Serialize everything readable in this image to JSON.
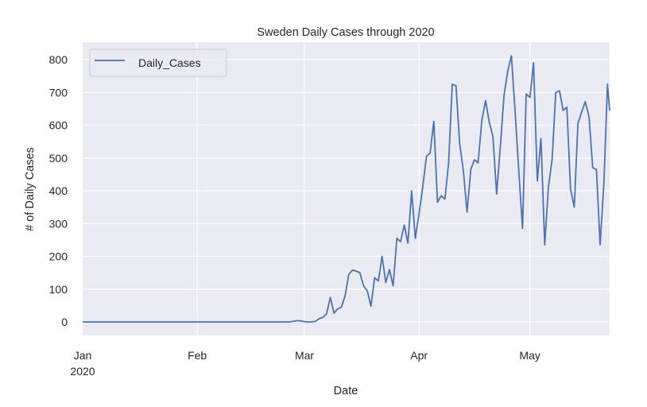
{
  "chart_data": {
    "type": "line",
    "title": "Sweden Daily Cases through 2020",
    "xlabel": "Date",
    "ylabel": "# of Daily Cases",
    "x_start": "2020-01-01",
    "x_range_days": [
      0,
      142.6
    ],
    "ylim": [
      -40,
      843
    ],
    "yticks": [
      0,
      100,
      200,
      300,
      400,
      500,
      600,
      700,
      800
    ],
    "ytick_labels": [
      "0",
      "100",
      "200",
      "300",
      "400",
      "500",
      "600",
      "700",
      "800"
    ],
    "xticks": [
      {
        "day": 0,
        "label": "Jan",
        "sublabel": "2020"
      },
      {
        "day": 31,
        "label": "Feb",
        "sublabel": ""
      },
      {
        "day": 60,
        "label": "Mar",
        "sublabel": ""
      },
      {
        "day": 91,
        "label": "Apr",
        "sublabel": ""
      },
      {
        "day": 121,
        "label": "May",
        "sublabel": ""
      }
    ],
    "grid": true,
    "legend": {
      "position": "upper-left",
      "entries": [
        "Daily_Cases"
      ]
    },
    "series": [
      {
        "name": "Daily_Cases",
        "color": "#4c72b0",
        "day_values": [
          [
            0,
            0
          ],
          [
            56,
            0
          ],
          [
            58,
            4
          ],
          [
            59,
            3
          ],
          [
            60,
            1
          ],
          [
            61,
            0
          ],
          [
            62,
            0
          ],
          [
            63,
            2
          ],
          [
            64,
            10
          ],
          [
            65,
            14
          ],
          [
            66,
            25
          ],
          [
            67,
            75
          ],
          [
            68,
            27
          ],
          [
            69,
            40
          ],
          [
            70,
            45
          ],
          [
            71,
            80
          ],
          [
            72,
            145
          ],
          [
            73,
            158
          ],
          [
            74,
            155
          ],
          [
            75,
            150
          ],
          [
            76,
            110
          ],
          [
            77,
            95
          ],
          [
            78,
            48
          ],
          [
            79,
            135
          ],
          [
            80,
            125
          ],
          [
            81,
            200
          ],
          [
            82,
            120
          ],
          [
            83,
            160
          ],
          [
            84,
            110
          ],
          [
            85,
            255
          ],
          [
            86,
            245
          ],
          [
            87,
            295
          ],
          [
            88,
            240
          ],
          [
            89,
            400
          ],
          [
            90,
            255
          ],
          [
            91,
            330
          ],
          [
            92,
            410
          ],
          [
            93,
            505
          ],
          [
            94,
            515
          ],
          [
            95,
            612
          ],
          [
            96,
            365
          ],
          [
            97,
            385
          ],
          [
            98,
            375
          ],
          [
            99,
            485
          ],
          [
            100,
            725
          ],
          [
            101,
            720
          ],
          [
            102,
            545
          ],
          [
            103,
            460
          ],
          [
            104,
            335
          ],
          [
            105,
            465
          ],
          [
            106,
            495
          ],
          [
            107,
            485
          ],
          [
            108,
            615
          ],
          [
            109,
            675
          ],
          [
            110,
            610
          ],
          [
            111,
            565
          ],
          [
            112,
            390
          ],
          [
            113,
            535
          ],
          [
            114,
            690
          ],
          [
            115,
            765
          ],
          [
            116,
            812
          ],
          [
            117,
            640
          ],
          [
            118,
            460
          ],
          [
            119,
            285
          ],
          [
            120,
            695
          ],
          [
            121,
            685
          ],
          [
            122,
            790
          ],
          [
            123,
            430
          ],
          [
            124,
            560
          ],
          [
            125,
            235
          ],
          [
            126,
            410
          ],
          [
            127,
            495
          ],
          [
            128,
            700
          ],
          [
            129,
            705
          ],
          [
            130,
            645
          ],
          [
            131,
            655
          ],
          [
            132,
            405
          ],
          [
            133,
            350
          ],
          [
            134,
            605
          ],
          [
            135,
            640
          ],
          [
            136,
            672
          ],
          [
            137,
            625
          ],
          [
            138,
            470
          ],
          [
            139,
            465
          ],
          [
            140,
            235
          ],
          [
            141,
            420
          ],
          [
            142,
            725
          ],
          [
            142.6,
            645
          ]
        ]
      }
    ]
  },
  "colors": {
    "plot_background": "#eaeaf2",
    "grid": "#ffffff",
    "line": "#4c72b0",
    "text": "#262626"
  }
}
